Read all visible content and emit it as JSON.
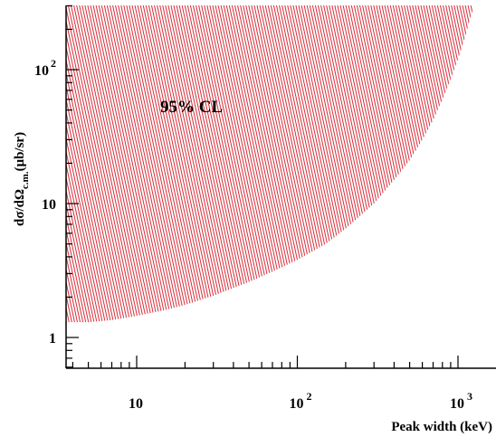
{
  "chart_data": {
    "type": "area",
    "xscale": "log",
    "yscale": "log",
    "xlim": [
      3.7,
      1300
    ],
    "ylim": [
      0.5,
      280
    ],
    "xlabel": "Peak width (keV)",
    "ylabel": {
      "main": "dσ/dΩ",
      "subscript": "c.m.",
      "unit": "(μb/sr)"
    },
    "x_ticks": [
      {
        "value": 10,
        "base": "10",
        "exp": ""
      },
      {
        "value": 100,
        "base": "10",
        "exp": "2"
      },
      {
        "value": 1000,
        "base": "10",
        "exp": "3"
      }
    ],
    "y_ticks": [
      {
        "value": 1,
        "base": "1",
        "exp": ""
      },
      {
        "value": 10,
        "base": "10",
        "exp": ""
      },
      {
        "value": 100,
        "base": "10",
        "exp": "2"
      }
    ],
    "annotation": "95% CL",
    "region": {
      "name": "",
      "fill": "hatched",
      "color": "#d0101e",
      "upper_bound": "top of plot",
      "lower_boundary": [
        {
          "x": 3.7,
          "y": 1.3
        },
        {
          "x": 5,
          "y": 1.3
        },
        {
          "x": 7,
          "y": 1.35
        },
        {
          "x": 10,
          "y": 1.45
        },
        {
          "x": 15,
          "y": 1.6
        },
        {
          "x": 20,
          "y": 1.75
        },
        {
          "x": 30,
          "y": 2.05
        },
        {
          "x": 50,
          "y": 2.6
        },
        {
          "x": 70,
          "y": 3.1
        },
        {
          "x": 100,
          "y": 3.8
        },
        {
          "x": 150,
          "y": 5.0
        },
        {
          "x": 200,
          "y": 6.5
        },
        {
          "x": 300,
          "y": 10
        },
        {
          "x": 400,
          "y": 15
        },
        {
          "x": 500,
          "y": 21
        },
        {
          "x": 600,
          "y": 30
        },
        {
          "x": 700,
          "y": 42
        },
        {
          "x": 800,
          "y": 60
        },
        {
          "x": 900,
          "y": 85
        },
        {
          "x": 1000,
          "y": 120
        },
        {
          "x": 1100,
          "y": 170
        },
        {
          "x": 1200,
          "y": 250
        },
        {
          "x": 1240,
          "y": 280
        }
      ]
    },
    "grid": false,
    "legend": "none"
  }
}
